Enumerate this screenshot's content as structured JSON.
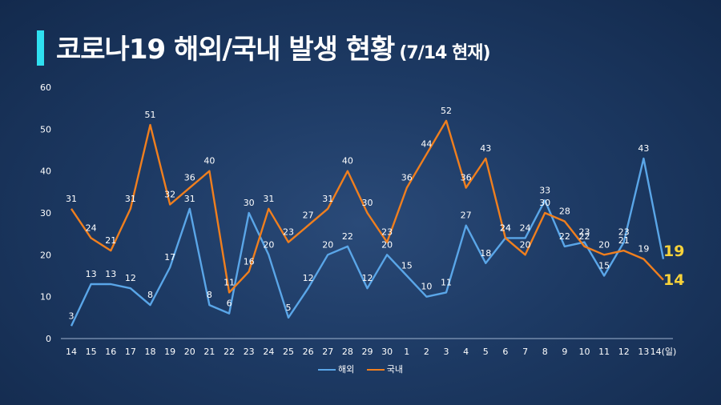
{
  "title": {
    "main": "코로나19 해외/국내 발생 현황",
    "sub": "(7/14 현재)"
  },
  "colors": {
    "title_accent": "#2fe0f0",
    "overseas": "#5aa6e8",
    "domestic": "#f07f1e",
    "end_label": "#f7d23a"
  },
  "chart_data": {
    "type": "line",
    "x": [
      "14",
      "15",
      "16",
      "17",
      "18",
      "19",
      "20",
      "21",
      "22",
      "23",
      "24",
      "25",
      "26",
      "27",
      "28",
      "29",
      "30",
      "1",
      "2",
      "3",
      "4",
      "5",
      "6",
      "7",
      "8",
      "9",
      "10",
      "11",
      "12",
      "13",
      "14(일)"
    ],
    "series": [
      {
        "name": "해외",
        "values": [
          3,
          13,
          13,
          12,
          8,
          17,
          31,
          8,
          6,
          30,
          20,
          5,
          12,
          20,
          22,
          12,
          20,
          15,
          10,
          11,
          27,
          18,
          24,
          24,
          33,
          22,
          23,
          15,
          23,
          43,
          19
        ]
      },
      {
        "name": "국내",
        "values": [
          31,
          24,
          21,
          31,
          51,
          32,
          36,
          40,
          11,
          16,
          31,
          23,
          27,
          31,
          40,
          30,
          23,
          36,
          44,
          52,
          36,
          43,
          24,
          20,
          30,
          28,
          22,
          20,
          21,
          19,
          14
        ]
      }
    ],
    "end_labels": [
      "19",
      "14"
    ],
    "yticks": [
      "0",
      "10",
      "20",
      "30",
      "40",
      "50",
      "60"
    ],
    "ylim": [
      0,
      60
    ],
    "grid": false,
    "legend_position": "bottom"
  }
}
